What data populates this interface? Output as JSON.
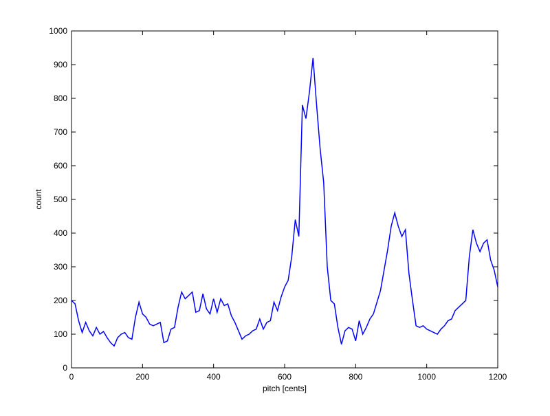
{
  "chart_data": {
    "type": "line",
    "xlabel": "pitch [cents]",
    "ylabel": "count",
    "x": [
      0,
      10,
      20,
      30,
      40,
      50,
      60,
      70,
      80,
      90,
      100,
      110,
      120,
      130,
      140,
      150,
      160,
      170,
      180,
      190,
      200,
      210,
      220,
      230,
      240,
      250,
      260,
      270,
      280,
      290,
      300,
      310,
      320,
      330,
      340,
      350,
      360,
      370,
      380,
      390,
      400,
      410,
      420,
      430,
      440,
      450,
      460,
      470,
      480,
      490,
      500,
      510,
      520,
      530,
      540,
      550,
      560,
      570,
      580,
      590,
      600,
      610,
      620,
      630,
      640,
      650,
      660,
      670,
      680,
      690,
      700,
      710,
      720,
      730,
      740,
      750,
      760,
      770,
      780,
      790,
      800,
      810,
      820,
      830,
      840,
      850,
      860,
      870,
      880,
      890,
      900,
      910,
      920,
      930,
      940,
      950,
      960,
      970,
      980,
      990,
      1000,
      1010,
      1020,
      1030,
      1040,
      1050,
      1060,
      1070,
      1080,
      1090,
      1100,
      1110,
      1120,
      1130,
      1140,
      1150,
      1160,
      1170,
      1180,
      1190,
      1200
    ],
    "series": [
      {
        "color": "#0000ff",
        "values": [
          200,
          190,
          140,
          105,
          135,
          110,
          95,
          120,
          100,
          108,
          90,
          75,
          65,
          90,
          100,
          105,
          90,
          85,
          150,
          195,
          160,
          150,
          130,
          125,
          130,
          135,
          75,
          80,
          115,
          120,
          180,
          225,
          205,
          215,
          225,
          165,
          170,
          220,
          175,
          160,
          205,
          165,
          205,
          185,
          190,
          155,
          135,
          110,
          85,
          95,
          100,
          110,
          115,
          145,
          115,
          135,
          140,
          195,
          170,
          210,
          240,
          260,
          330,
          440,
          390,
          780,
          740,
          820,
          920,
          780,
          650,
          550,
          300,
          200,
          190,
          120,
          70,
          110,
          120,
          115,
          80,
          140,
          100,
          120,
          145,
          160,
          195,
          230,
          290,
          350,
          420,
          460,
          420,
          390,
          410,
          280,
          200,
          125,
          120,
          125,
          115,
          110,
          105,
          100,
          115,
          125,
          140,
          145,
          170,
          180,
          190,
          200,
          330,
          410,
          370,
          345,
          370,
          380,
          320,
          290,
          240
        ]
      }
    ],
    "xlim": [
      0,
      1200
    ],
    "xticks": [
      0,
      200,
      400,
      600,
      800,
      1000,
      1200
    ],
    "ylim": [
      0,
      1000
    ],
    "yticks": [
      0,
      100,
      200,
      300,
      400,
      500,
      600,
      700,
      800,
      900,
      1000
    ]
  }
}
